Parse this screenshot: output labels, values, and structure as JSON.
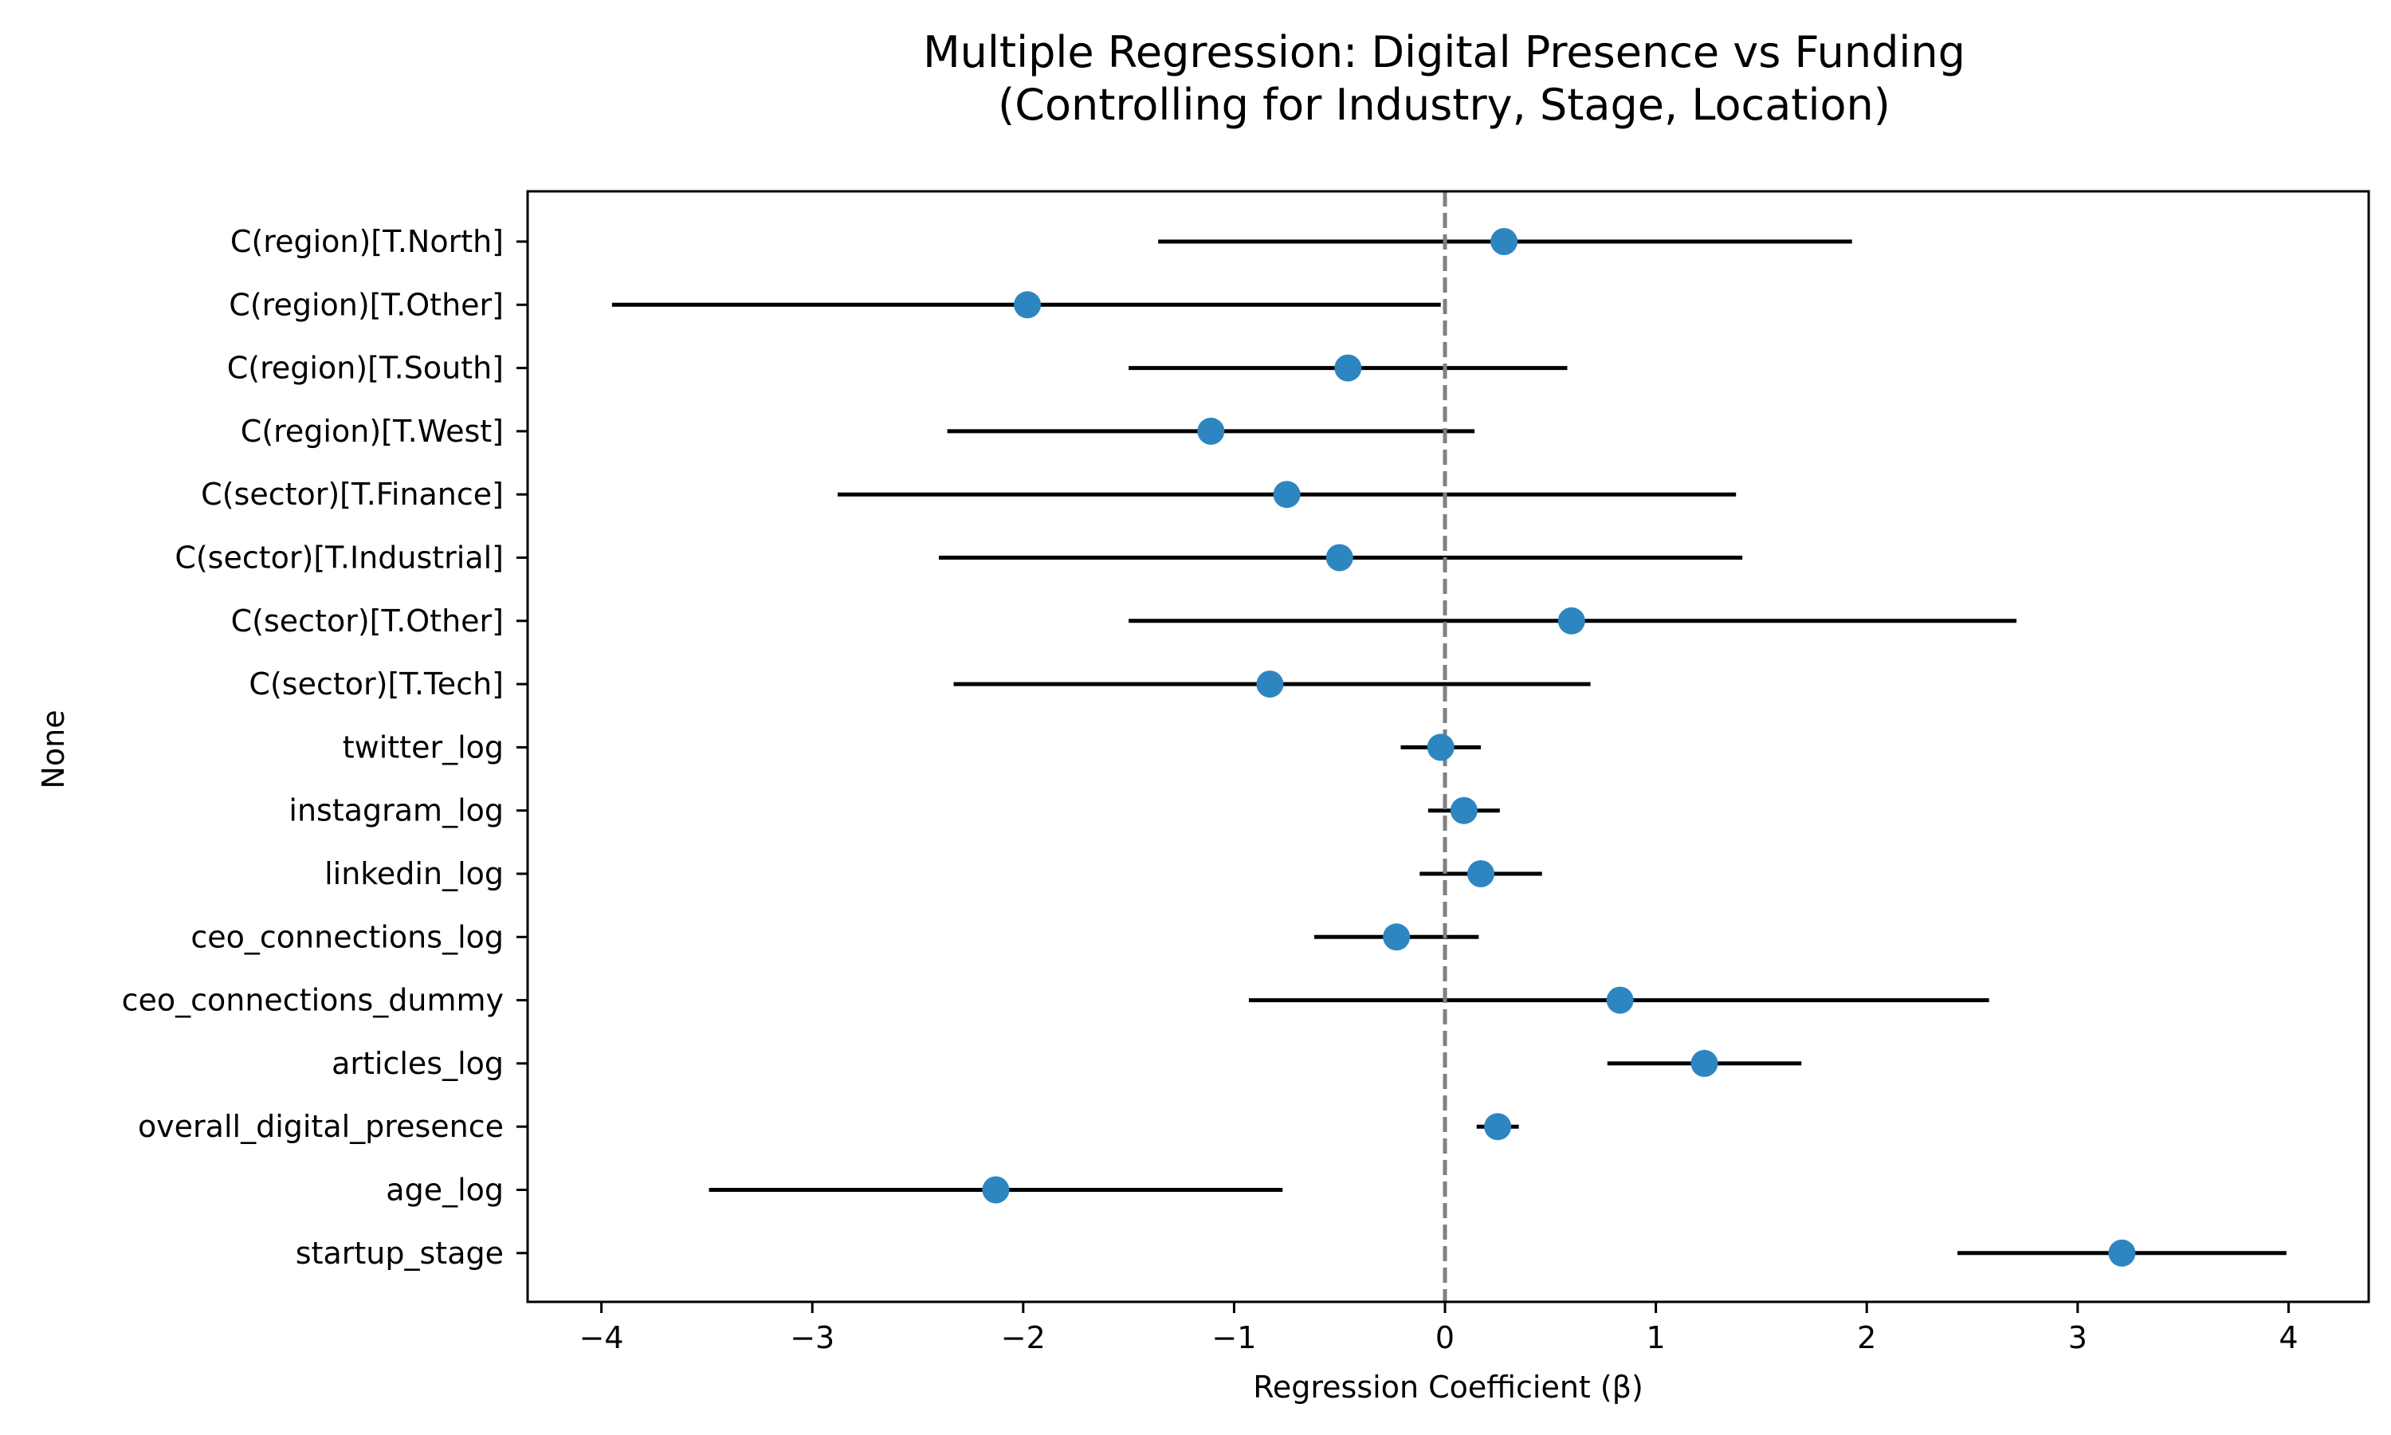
{
  "chart_data": {
    "type": "forest",
    "title_lines": [
      "Multiple Regression: Digital Presence vs Funding",
      "(Controlling for Industry, Stage, Location)"
    ],
    "xlabel": "Regression Coefficient (β)",
    "ylabel": "None",
    "xlim": [
      -4.35,
      4.38
    ],
    "xticks": [
      -4,
      -3,
      -2,
      -1,
      0,
      1,
      2,
      3,
      4
    ],
    "xtick_labels": [
      "−4",
      "−3",
      "−2",
      "−1",
      "0",
      "1",
      "2",
      "3",
      "4"
    ],
    "reference_line": 0,
    "grid": false,
    "point_color": "#2e86c1",
    "interval_color": "#000000",
    "reference_line_color": "#808080",
    "categories": [
      "C(region)[T.North]",
      "C(region)[T.Other]",
      "C(region)[T.South]",
      "C(region)[T.West]",
      "C(sector)[T.Finance]",
      "C(sector)[T.Industrial]",
      "C(sector)[T.Other]",
      "C(sector)[T.Tech]",
      "twitter_log",
      "instagram_log",
      "linkedin_log",
      "ceo_connections_log",
      "ceo_connections_dummy",
      "articles_log",
      "overall_digital_presence",
      "age_log",
      "startup_stage"
    ],
    "coef": [
      0.28,
      -1.98,
      -0.46,
      -1.11,
      -0.75,
      -0.5,
      0.6,
      -0.83,
      -0.02,
      0.09,
      0.17,
      -0.23,
      0.83,
      1.23,
      0.25,
      -2.13,
      3.21
    ],
    "ci_low": [
      -1.36,
      -3.95,
      -1.5,
      -2.36,
      -2.88,
      -2.4,
      -1.5,
      -2.33,
      -0.21,
      -0.08,
      -0.12,
      -0.62,
      -0.93,
      0.77,
      0.15,
      -3.49,
      2.43
    ],
    "ci_high": [
      1.93,
      -0.02,
      0.58,
      0.14,
      1.38,
      1.41,
      2.71,
      0.69,
      0.17,
      0.26,
      0.46,
      0.16,
      2.58,
      1.69,
      0.35,
      -0.77,
      3.99
    ]
  }
}
